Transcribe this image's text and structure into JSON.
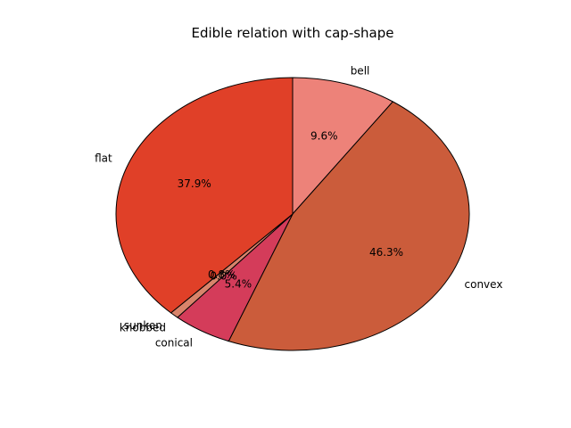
{
  "chart_data": {
    "type": "pie",
    "title": "Edible relation with cap-shape",
    "categories": [
      "bell",
      "convex",
      "conical",
      "knobbed",
      "sunken",
      "flat"
    ],
    "values": [
      9.6,
      46.3,
      5.4,
      0.0,
      0.8,
      37.9
    ],
    "value_labels": [
      "9.6%",
      "46.3%",
      "5.4%",
      "0.0%",
      "0.8%",
      "37.9%"
    ],
    "colors": [
      "#ed8279",
      "#cb5c3b",
      "#d43c5a",
      "#e47049",
      "#d8846b",
      "#e04028"
    ],
    "start_angle_deg": 90,
    "direction": "clockwise"
  }
}
